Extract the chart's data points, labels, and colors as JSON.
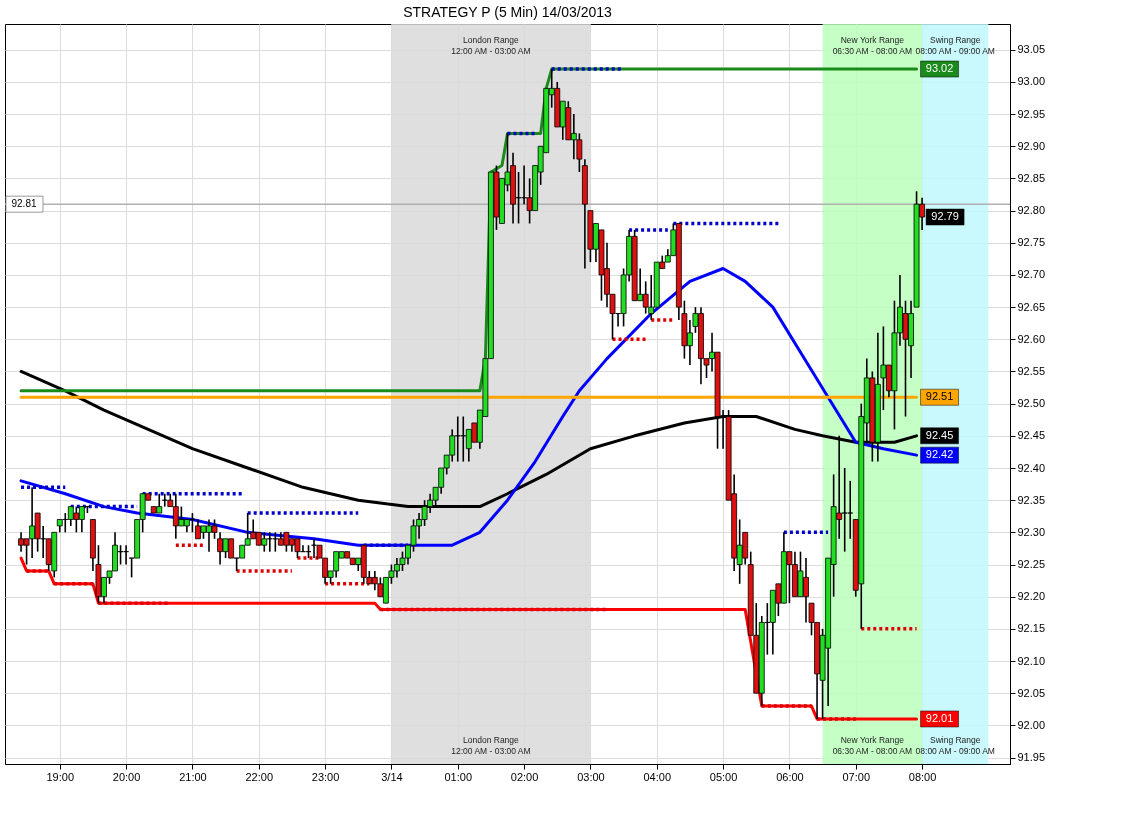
{
  "chart_data": {
    "type": "candlestick",
    "title": "STRATEGY P (5 Min)  14/03/2013",
    "x": [
      "2013-03-13T18:25",
      "2013-03-13T18:30",
      "2013-03-13T18:35",
      "2013-03-13T18:40",
      "2013-03-13T18:45",
      "2013-03-13T18:50",
      "2013-03-13T18:55",
      "2013-03-13T19:00",
      "2013-03-13T19:05",
      "2013-03-13T19:10",
      "2013-03-13T19:15",
      "2013-03-13T19:20",
      "2013-03-13T19:25",
      "2013-03-13T19:30",
      "2013-03-13T19:35",
      "2013-03-13T19:40",
      "2013-03-13T19:45",
      "2013-03-13T19:50",
      "2013-03-13T19:55",
      "2013-03-13T20:00",
      "2013-03-13T20:05",
      "2013-03-13T20:10",
      "2013-03-13T20:15",
      "2013-03-13T20:20",
      "2013-03-13T20:25",
      "2013-03-13T20:30",
      "2013-03-13T20:35",
      "2013-03-13T20:40",
      "2013-03-13T20:45",
      "2013-03-13T20:50",
      "2013-03-13T20:55",
      "2013-03-13T21:00",
      "2013-03-13T21:05",
      "2013-03-13T21:10",
      "2013-03-13T21:15",
      "2013-03-13T21:20",
      "2013-03-13T21:25",
      "2013-03-13T21:30",
      "2013-03-13T21:35",
      "2013-03-13T21:40",
      "2013-03-13T21:45",
      "2013-03-13T21:50",
      "2013-03-13T21:55",
      "2013-03-13T22:00",
      "2013-03-13T22:05",
      "2013-03-13T22:10",
      "2013-03-13T22:15",
      "2013-03-13T22:20",
      "2013-03-13T22:25",
      "2013-03-13T22:30",
      "2013-03-13T22:35",
      "2013-03-13T22:40",
      "2013-03-13T22:45",
      "2013-03-13T22:50",
      "2013-03-13T22:55",
      "2013-03-13T23:00",
      "2013-03-13T23:05",
      "2013-03-13T23:10",
      "2013-03-13T23:15",
      "2013-03-13T23:20",
      "2013-03-13T23:25",
      "2013-03-13T23:30",
      "2013-03-13T23:35",
      "2013-03-13T23:40",
      "2013-03-13T23:45",
      "2013-03-13T23:50",
      "2013-03-13T23:55",
      "2013-03-14T00:00",
      "2013-03-14T00:05",
      "2013-03-14T00:10",
      "2013-03-14T00:15",
      "2013-03-14T00:20",
      "2013-03-14T00:25",
      "2013-03-14T00:30",
      "2013-03-14T00:35",
      "2013-03-14T00:40",
      "2013-03-14T00:45",
      "2013-03-14T00:50",
      "2013-03-14T00:55",
      "2013-03-14T01:00",
      "2013-03-14T01:05",
      "2013-03-14T01:10",
      "2013-03-14T01:15",
      "2013-03-14T01:20",
      "2013-03-14T01:25",
      "2013-03-14T01:30",
      "2013-03-14T01:35",
      "2013-03-14T01:40",
      "2013-03-14T01:45",
      "2013-03-14T01:50",
      "2013-03-14T01:55",
      "2013-03-14T02:00",
      "2013-03-14T02:05",
      "2013-03-14T02:10",
      "2013-03-14T02:15",
      "2013-03-14T02:20",
      "2013-03-14T02:25",
      "2013-03-14T02:30",
      "2013-03-14T02:35",
      "2013-03-14T02:40",
      "2013-03-14T02:45",
      "2013-03-14T02:50",
      "2013-03-14T02:55",
      "2013-03-14T03:00",
      "2013-03-14T03:05",
      "2013-03-14T03:10",
      "2013-03-14T03:15",
      "2013-03-14T03:20",
      "2013-03-14T03:25",
      "2013-03-14T03:30",
      "2013-03-14T03:35",
      "2013-03-14T03:40",
      "2013-03-14T03:45",
      "2013-03-14T03:50",
      "2013-03-14T03:55",
      "2013-03-14T04:00",
      "2013-03-14T04:05",
      "2013-03-14T04:10",
      "2013-03-14T04:15",
      "2013-03-14T04:20",
      "2013-03-14T04:25",
      "2013-03-14T04:30",
      "2013-03-14T04:35",
      "2013-03-14T04:40",
      "2013-03-14T04:45",
      "2013-03-14T04:50",
      "2013-03-14T04:55",
      "2013-03-14T05:00",
      "2013-03-14T05:05",
      "2013-03-14T05:10",
      "2013-03-14T05:15",
      "2013-03-14T05:20",
      "2013-03-14T05:25",
      "2013-03-14T05:30",
      "2013-03-14T05:35",
      "2013-03-14T05:40",
      "2013-03-14T05:45",
      "2013-03-14T05:50",
      "2013-03-14T05:55",
      "2013-03-14T06:00",
      "2013-03-14T06:05",
      "2013-03-14T06:10",
      "2013-03-14T06:15",
      "2013-03-14T06:20",
      "2013-03-14T06:25",
      "2013-03-14T06:30",
      "2013-03-14T06:35",
      "2013-03-14T06:40",
      "2013-03-14T06:45",
      "2013-03-14T06:50",
      "2013-03-14T06:55",
      "2013-03-14T07:00",
      "2013-03-14T07:05",
      "2013-03-14T07:10",
      "2013-03-14T07:15",
      "2013-03-14T07:20",
      "2013-03-14T07:25",
      "2013-03-14T07:30",
      "2013-03-14T07:35",
      "2013-03-14T07:40",
      "2013-03-14T07:45",
      "2013-03-14T07:50",
      "2013-03-14T07:55",
      "2013-03-14T08:00"
    ],
    "ohlc": [
      [
        92.29,
        92.3,
        92.27,
        92.28
      ],
      [
        92.29,
        92.29,
        92.25,
        92.28
      ],
      [
        92.29,
        92.37,
        92.26,
        92.31
      ],
      [
        92.33,
        92.33,
        92.27,
        92.29
      ],
      [
        92.29,
        92.31,
        92.26,
        92.29
      ],
      [
        92.29,
        92.29,
        92.24,
        92.25
      ],
      [
        92.24,
        92.3,
        92.23,
        92.3
      ],
      [
        92.31,
        92.32,
        92.3,
        92.32
      ],
      [
        92.32,
        92.33,
        92.3,
        92.32
      ],
      [
        92.32,
        92.34,
        92.31,
        92.34
      ],
      [
        92.33,
        92.34,
        92.3,
        92.32
      ],
      [
        92.32,
        92.34,
        92.3,
        92.34
      ],
      [
        92.34,
        92.34,
        92.33,
        92.34
      ],
      [
        92.32,
        92.32,
        92.24,
        92.26
      ],
      [
        92.25,
        92.28,
        92.19,
        92.2
      ],
      [
        92.2,
        92.23,
        92.19,
        92.23
      ],
      [
        92.23,
        92.24,
        92.22,
        92.24
      ],
      [
        92.24,
        92.3,
        92.24,
        92.28
      ],
      [
        92.27,
        92.28,
        92.25,
        92.27
      ],
      [
        92.27,
        92.28,
        92.25,
        92.27
      ],
      [
        92.26,
        92.26,
        92.23,
        92.26
      ],
      [
        92.26,
        92.32,
        92.26,
        92.32
      ],
      [
        92.32,
        92.36,
        92.3,
        92.36
      ],
      [
        92.36,
        92.36,
        92.35,
        92.35
      ],
      [
        92.34,
        92.34,
        92.33,
        92.33
      ],
      [
        92.33,
        92.36,
        92.33,
        92.34
      ],
      [
        92.35,
        92.36,
        92.34,
        92.35
      ],
      [
        92.35,
        92.36,
        92.34,
        92.34
      ],
      [
        92.34,
        92.36,
        92.29,
        92.31
      ],
      [
        92.31,
        92.34,
        92.31,
        92.32
      ],
      [
        92.31,
        92.32,
        92.3,
        92.32
      ],
      [
        92.32,
        92.33,
        92.3,
        92.32
      ],
      [
        92.31,
        92.32,
        92.29,
        92.29
      ],
      [
        92.3,
        92.31,
        92.29,
        92.31
      ],
      [
        92.3,
        92.32,
        92.27,
        92.31
      ],
      [
        92.31,
        92.32,
        92.29,
        92.3
      ],
      [
        92.29,
        92.3,
        92.25,
        92.27
      ],
      [
        92.27,
        92.29,
        92.26,
        92.29
      ],
      [
        92.29,
        92.29,
        92.26,
        92.26
      ],
      [
        92.26,
        92.26,
        92.24,
        92.26
      ],
      [
        92.26,
        92.28,
        92.26,
        92.28
      ],
      [
        92.28,
        92.33,
        92.28,
        92.29
      ],
      [
        92.3,
        92.32,
        92.29,
        92.29
      ],
      [
        92.3,
        92.3,
        92.28,
        92.28
      ],
      [
        92.28,
        92.3,
        92.27,
        92.29
      ],
      [
        92.29,
        92.3,
        92.27,
        92.29
      ],
      [
        92.29,
        92.3,
        92.27,
        92.29
      ],
      [
        92.29,
        92.3,
        92.28,
        92.28
      ],
      [
        92.3,
        92.3,
        92.27,
        92.28
      ],
      [
        92.29,
        92.29,
        92.27,
        92.28
      ],
      [
        92.29,
        92.29,
        92.26,
        92.27
      ],
      [
        92.27,
        92.28,
        92.27,
        92.27
      ],
      [
        92.27,
        92.28,
        92.26,
        92.27
      ],
      [
        92.28,
        92.29,
        92.26,
        92.28
      ],
      [
        92.28,
        92.28,
        92.26,
        92.26
      ],
      [
        92.26,
        92.26,
        92.22,
        92.23
      ],
      [
        92.23,
        92.24,
        92.22,
        92.24
      ],
      [
        92.24,
        92.27,
        92.23,
        92.27
      ],
      [
        92.26,
        92.27,
        92.26,
        92.27
      ],
      [
        92.27,
        92.27,
        92.26,
        92.26
      ],
      [
        92.26,
        92.26,
        92.25,
        92.25
      ],
      [
        92.25,
        92.26,
        92.24,
        92.26
      ],
      [
        92.28,
        92.28,
        92.22,
        92.23
      ],
      [
        92.23,
        92.24,
        92.22,
        92.22
      ],
      [
        92.23,
        92.24,
        92.21,
        92.22
      ],
      [
        92.22,
        92.23,
        92.2,
        92.2
      ],
      [
        92.19,
        92.23,
        92.19,
        92.23
      ],
      [
        92.23,
        92.25,
        92.22,
        92.24
      ],
      [
        92.24,
        92.26,
        92.23,
        92.25
      ],
      [
        92.25,
        92.27,
        92.24,
        92.26
      ],
      [
        92.26,
        92.28,
        92.25,
        92.28
      ],
      [
        92.28,
        92.32,
        92.27,
        92.31
      ],
      [
        92.31,
        92.33,
        92.29,
        92.32
      ],
      [
        92.32,
        92.35,
        92.31,
        92.34
      ],
      [
        92.34,
        92.36,
        92.33,
        92.35
      ],
      [
        92.35,
        92.37,
        92.34,
        92.37
      ],
      [
        92.37,
        92.4,
        92.36,
        92.4
      ],
      [
        92.4,
        92.42,
        92.39,
        92.42
      ],
      [
        92.42,
        92.46,
        92.41,
        92.45
      ],
      [
        92.45,
        92.48,
        92.41,
        92.45
      ],
      [
        92.45,
        92.48,
        92.41,
        92.45
      ],
      [
        92.43,
        92.46,
        92.41,
        92.46
      ],
      [
        92.47,
        92.47,
        92.44,
        92.44
      ],
      [
        92.44,
        92.49,
        92.43,
        92.49
      ],
      [
        92.48,
        92.57,
        92.48,
        92.57
      ],
      [
        92.57,
        92.86,
        92.57,
        92.86
      ],
      [
        92.86,
        92.87,
        92.77,
        92.79
      ],
      [
        92.78,
        92.85,
        92.78,
        92.85
      ],
      [
        92.84,
        92.92,
        92.83,
        92.86
      ],
      [
        92.87,
        92.89,
        92.78,
        92.81
      ],
      [
        92.82,
        92.86,
        92.78,
        92.82
      ],
      [
        92.82,
        92.87,
        92.81,
        92.82
      ],
      [
        92.82,
        92.85,
        92.78,
        92.8
      ],
      [
        92.8,
        92.87,
        92.8,
        92.87
      ],
      [
        92.86,
        92.9,
        92.84,
        92.9
      ],
      [
        92.89,
        92.99,
        92.89,
        92.99
      ],
      [
        92.98,
        93.02,
        92.96,
        92.99
      ],
      [
        92.99,
        93.0,
        92.93,
        92.93
      ],
      [
        92.93,
        92.97,
        92.91,
        92.97
      ],
      [
        92.96,
        92.97,
        92.91,
        92.91
      ],
      [
        92.91,
        92.95,
        92.88,
        92.92
      ],
      [
        92.91,
        92.92,
        92.86,
        92.88
      ],
      [
        92.87,
        92.88,
        92.71,
        92.81
      ],
      [
        92.8,
        92.8,
        92.72,
        92.74
      ],
      [
        92.74,
        92.78,
        92.72,
        92.78
      ],
      [
        92.77,
        92.77,
        92.66,
        92.7
      ],
      [
        92.71,
        92.75,
        92.65,
        92.67
      ],
      [
        92.67,
        92.67,
        92.6,
        92.64
      ],
      [
        92.64,
        92.64,
        92.62,
        92.64
      ],
      [
        92.64,
        92.71,
        92.62,
        92.7
      ],
      [
        92.7,
        92.77,
        92.69,
        92.76
      ],
      [
        92.76,
        92.77,
        92.66,
        92.66
      ],
      [
        92.66,
        92.71,
        92.66,
        92.67
      ],
      [
        92.67,
        92.69,
        92.64,
        92.65
      ],
      [
        92.64,
        92.7,
        92.63,
        92.65
      ],
      [
        92.65,
        92.72,
        92.65,
        92.72
      ],
      [
        92.72,
        92.73,
        92.71,
        92.71
      ],
      [
        92.72,
        92.74,
        92.72,
        92.73
      ],
      [
        92.73,
        92.78,
        92.73,
        92.77
      ],
      [
        92.78,
        92.78,
        92.63,
        92.65
      ],
      [
        92.64,
        92.66,
        92.57,
        92.59
      ],
      [
        92.59,
        92.63,
        92.56,
        92.61
      ],
      [
        92.62,
        92.65,
        92.61,
        92.64
      ],
      [
        92.64,
        92.65,
        92.53,
        92.57
      ],
      [
        92.57,
        92.57,
        92.54,
        92.56
      ],
      [
        92.57,
        92.61,
        92.55,
        92.58
      ],
      [
        92.58,
        92.58,
        92.43,
        92.48
      ],
      [
        92.48,
        92.49,
        92.43,
        92.48
      ],
      [
        92.48,
        92.49,
        92.35,
        92.35
      ],
      [
        92.36,
        92.39,
        92.24,
        92.26
      ],
      [
        92.25,
        92.32,
        92.22,
        92.28
      ],
      [
        92.3,
        92.3,
        92.25,
        92.26
      ],
      [
        92.25,
        92.27,
        92.14,
        92.14
      ],
      [
        92.14,
        92.19,
        92.05,
        92.05
      ],
      [
        92.05,
        92.17,
        92.03,
        92.16
      ],
      [
        92.16,
        92.19,
        92.11,
        92.16
      ],
      [
        92.16,
        92.21,
        92.11,
        92.21
      ],
      [
        92.22,
        92.22,
        92.17,
        92.19
      ],
      [
        92.19,
        92.3,
        92.19,
        92.27
      ],
      [
        92.27,
        92.27,
        92.19,
        92.25
      ],
      [
        92.25,
        92.27,
        92.2,
        92.2
      ],
      [
        92.2,
        92.27,
        92.2,
        92.24
      ],
      [
        92.23,
        92.26,
        92.16,
        92.2
      ],
      [
        92.19,
        92.19,
        92.14,
        92.16
      ],
      [
        92.16,
        92.16,
        92.01,
        92.08
      ],
      [
        92.07,
        92.15,
        92.01,
        92.14
      ],
      [
        92.12,
        92.26,
        92.03,
        92.26
      ],
      [
        92.25,
        92.39,
        92.2,
        92.34
      ],
      [
        92.33,
        92.45,
        92.29,
        92.32
      ],
      [
        92.33,
        92.4,
        92.27,
        92.33
      ],
      [
        92.33,
        92.38,
        92.29,
        92.33
      ],
      [
        92.32,
        92.32,
        92.2,
        92.21
      ],
      [
        92.22,
        92.5,
        92.15,
        92.48
      ],
      [
        92.47,
        92.57,
        92.44,
        92.54
      ],
      [
        92.54,
        92.55,
        92.41,
        92.44
      ],
      [
        92.44,
        92.61,
        92.41,
        92.53
      ],
      [
        92.54,
        92.62,
        92.49,
        92.56
      ],
      [
        92.56,
        92.56,
        92.51,
        92.52
      ],
      [
        92.52,
        92.66,
        92.46,
        92.61
      ],
      [
        92.61,
        92.7,
        92.59,
        92.65
      ],
      [
        92.64,
        92.66,
        92.48,
        92.6
      ],
      [
        92.59,
        92.66,
        92.54,
        92.64
      ],
      [
        92.65,
        92.83,
        92.65,
        92.81
      ],
      [
        92.81,
        92.82,
        92.77,
        92.79
      ]
    ],
    "series": [
      {
        "type": "line",
        "color": "#000000",
        "x": [
          "2013-03-13T18:25",
          "2013-03-13T19:05",
          "2013-03-13T19:40",
          "2013-03-13T20:20",
          "2013-03-13T21:00",
          "2013-03-13T21:50",
          "2013-03-13T22:40",
          "2013-03-13T23:30",
          "2013-03-14T00:15",
          "2013-03-14T01:20",
          "2013-03-14T01:45",
          "2013-03-14T02:20",
          "2013-03-14T03:00",
          "2013-03-14T03:40",
          "2013-03-14T04:25",
          "2013-03-14T05:00",
          "2013-03-14T05:30",
          "2013-03-14T06:05",
          "2013-03-14T06:30",
          "2013-03-14T07:00",
          "2013-03-14T07:35",
          "2013-03-14T07:55"
        ],
        "values": [
          92.55,
          92.52,
          92.49,
          92.46,
          92.43,
          92.4,
          92.37,
          92.35,
          92.34,
          92.34,
          92.36,
          92.39,
          92.43,
          92.45,
          92.47,
          92.48,
          92.48,
          92.46,
          92.45,
          92.44,
          92.44,
          92.45
        ]
      },
      {
        "type": "line",
        "color": "#0000ff",
        "x": [
          "2013-03-13T18:25",
          "2013-03-13T19:05",
          "2013-03-13T19:40",
          "2013-03-13T20:10",
          "2013-03-13T21:00",
          "2013-03-13T21:50",
          "2013-03-13T22:50",
          "2013-03-13T23:30",
          "2013-03-14T00:30",
          "2013-03-14T00:55",
          "2013-03-14T01:20",
          "2013-03-14T01:45",
          "2013-03-14T02:10",
          "2013-03-14T02:35",
          "2013-03-14T02:50",
          "2013-03-14T03:15",
          "2013-03-14T03:55",
          "2013-03-14T04:30",
          "2013-03-14T05:00",
          "2013-03-14T05:20",
          "2013-03-14T05:45",
          "2013-03-14T06:10",
          "2013-03-14T06:35",
          "2013-03-14T07:00",
          "2013-03-14T07:25",
          "2013-03-14T07:55"
        ],
        "values": [
          92.38,
          92.36,
          92.34,
          92.33,
          92.32,
          92.3,
          92.29,
          92.28,
          92.28,
          92.28,
          92.3,
          92.35,
          92.41,
          92.48,
          92.52,
          92.57,
          92.64,
          92.69,
          92.71,
          92.69,
          92.65,
          92.58,
          92.51,
          92.44,
          92.43,
          92.42
        ]
      },
      {
        "type": "line",
        "color": "#1a8a1a",
        "x": [
          "2013-03-13T18:25",
          "2013-03-14T01:20",
          "2013-03-14T01:25",
          "2013-03-14T01:30",
          "2013-03-14T01:40",
          "2013-03-14T01:45",
          "2013-03-14T02:15",
          "2013-03-14T02:20",
          "2013-03-14T02:25",
          "2013-03-14T07:55"
        ],
        "values": [
          92.52,
          92.52,
          92.57,
          92.86,
          92.87,
          92.92,
          92.92,
          92.99,
          93.02,
          93.02
        ]
      },
      {
        "type": "line",
        "color": "#ff0000",
        "x": [
          "2013-03-13T18:25",
          "2013-03-13T18:30",
          "2013-03-13T18:50",
          "2013-03-13T18:55",
          "2013-03-13T19:30",
          "2013-03-13T19:35",
          "2013-03-13T23:45",
          "2013-03-13T23:50",
          "2013-03-14T05:20",
          "2013-03-14T05:35",
          "2013-03-14T06:20",
          "2013-03-14T06:25",
          "2013-03-14T07:55"
        ],
        "values": [
          92.26,
          92.24,
          92.24,
          92.22,
          92.22,
          92.19,
          92.19,
          92.18,
          92.18,
          92.03,
          92.03,
          92.01,
          92.01
        ]
      },
      {
        "type": "line",
        "color": "#ffa500",
        "x": [
          "2013-03-13T18:25",
          "2013-03-14T07:55"
        ],
        "values": [
          92.51,
          92.51
        ]
      },
      {
        "type": "line",
        "color": "#0000c8",
        "line_style": "dotted",
        "x": [
          "2013-03-13T18:25",
          "2013-03-13T19:05"
        ],
        "values": [
          92.37,
          92.37
        ]
      },
      {
        "type": "line",
        "color": "#0000c8",
        "line_style": "dotted",
        "x": [
          "2013-03-13T19:10",
          "2013-03-13T20:10"
        ],
        "values": [
          92.34,
          92.34
        ]
      },
      {
        "type": "line",
        "color": "#0000c8",
        "line_style": "dotted",
        "x": [
          "2013-03-13T20:15",
          "2013-03-13T21:45"
        ],
        "values": [
          92.36,
          92.36
        ]
      },
      {
        "type": "line",
        "color": "#0000c8",
        "line_style": "dotted",
        "x": [
          "2013-03-13T21:50",
          "2013-03-13T23:30"
        ],
        "values": [
          92.33,
          92.33
        ]
      },
      {
        "type": "line",
        "color": "#0000c8",
        "line_style": "dotted",
        "x": [
          "2013-03-13T23:35",
          "2013-03-14T00:15"
        ],
        "values": [
          92.28,
          92.28
        ]
      },
      {
        "type": "line",
        "color": "#0000c8",
        "line_style": "dotted",
        "x": [
          "2013-03-14T01:45",
          "2013-03-14T02:10"
        ],
        "values": [
          92.92,
          92.92
        ]
      },
      {
        "type": "line",
        "color": "#0000c8",
        "line_style": "dotted",
        "x": [
          "2013-03-14T02:25",
          "2013-03-14T03:30"
        ],
        "values": [
          93.02,
          93.02
        ]
      },
      {
        "type": "line",
        "color": "#0000c8",
        "line_style": "dotted",
        "x": [
          "2013-03-14T03:35",
          "2013-03-14T04:10"
        ],
        "values": [
          92.77,
          92.77
        ]
      },
      {
        "type": "line",
        "color": "#0000c8",
        "line_style": "dotted",
        "x": [
          "2013-03-14T04:15",
          "2013-03-14T05:50"
        ],
        "values": [
          92.78,
          92.78
        ]
      },
      {
        "type": "line",
        "color": "#0000c8",
        "line_style": "dotted",
        "x": [
          "2013-03-14T05:55",
          "2013-03-14T06:35"
        ],
        "values": [
          92.3,
          92.3
        ]
      },
      {
        "type": "line",
        "color": "#dd0000",
        "line_style": "dotted",
        "x": [
          "2013-03-13T18:30",
          "2013-03-13T18:50"
        ],
        "values": [
          92.24,
          92.24
        ]
      },
      {
        "type": "line",
        "color": "#dd0000",
        "line_style": "dotted",
        "x": [
          "2013-03-13T18:55",
          "2013-03-13T19:30"
        ],
        "values": [
          92.22,
          92.22
        ]
      },
      {
        "type": "line",
        "color": "#dd0000",
        "line_style": "dotted",
        "x": [
          "2013-03-13T19:35",
          "2013-03-13T20:40"
        ],
        "values": [
          92.19,
          92.19
        ]
      },
      {
        "type": "line",
        "color": "#dd0000",
        "line_style": "dotted",
        "x": [
          "2013-03-13T20:45",
          "2013-03-13T21:10"
        ],
        "values": [
          92.28,
          92.28
        ]
      },
      {
        "type": "line",
        "color": "#dd0000",
        "line_style": "dotted",
        "x": [
          "2013-03-13T21:40",
          "2013-03-13T22:30"
        ],
        "values": [
          92.24,
          92.24
        ]
      },
      {
        "type": "line",
        "color": "#dd0000",
        "line_style": "dotted",
        "x": [
          "2013-03-13T22:35",
          "2013-03-13T22:55"
        ],
        "values": [
          92.26,
          92.26
        ]
      },
      {
        "type": "line",
        "color": "#dd0000",
        "line_style": "dotted",
        "x": [
          "2013-03-13T23:00",
          "2013-03-13T23:40"
        ],
        "values": [
          92.22,
          92.22
        ]
      },
      {
        "type": "line",
        "color": "#dd0000",
        "line_style": "dotted",
        "x": [
          "2013-03-13T23:50",
          "2013-03-14T03:15"
        ],
        "values": [
          92.18,
          92.18
        ]
      },
      {
        "type": "line",
        "color": "#dd0000",
        "line_style": "dotted",
        "x": [
          "2013-03-14T03:20",
          "2013-03-14T03:50"
        ],
        "values": [
          92.6,
          92.6
        ]
      },
      {
        "type": "line",
        "color": "#dd0000",
        "line_style": "dotted",
        "x": [
          "2013-03-14T03:55",
          "2013-03-14T04:15"
        ],
        "values": [
          92.63,
          92.63
        ]
      },
      {
        "type": "line",
        "color": "#dd0000",
        "line_style": "dotted",
        "x": [
          "2013-03-14T05:35",
          "2013-03-14T06:20"
        ],
        "values": [
          92.03,
          92.03
        ]
      },
      {
        "type": "line",
        "color": "#dd0000",
        "line_style": "dotted",
        "x": [
          "2013-03-14T06:25",
          "2013-03-14T07:00"
        ],
        "values": [
          92.01,
          92.01
        ]
      },
      {
        "type": "line",
        "color": "#dd0000",
        "line_style": "dotted",
        "x": [
          "2013-03-14T07:05",
          "2013-03-14T07:55"
        ],
        "values": [
          92.15,
          92.15
        ]
      }
    ],
    "bands": [
      {
        "axis": "x",
        "from": "2013-03-14T00:00",
        "to": "2013-03-14T03:00",
        "label": "London Range\n12:00 AM - 03:00 AM",
        "color": "#d9d9d9"
      },
      {
        "axis": "x",
        "from": "2013-03-14T06:30",
        "to": "2013-03-14T08:00",
        "label": "New York Range\n06:30 AM - 08:00 AM",
        "color": "#bbffbb"
      },
      {
        "axis": "x",
        "from": "2013-03-14T08:00",
        "to": "2013-03-14T09:00",
        "label": "Swing Range\n08:00 AM - 09:00 AM",
        "color": "#bff8fb"
      }
    ],
    "ref_lines": [
      {
        "axis": "y",
        "value": 92.81,
        "label": "92.81",
        "color": "#b0b0b0"
      }
    ],
    "annotations": [
      {
        "text": "93.02",
        "x": "2013-03-14T07:55",
        "y": 93.02
      },
      {
        "text": "92.79",
        "x": "2013-03-14T08:00",
        "y": 92.79
      },
      {
        "text": "92.51",
        "x": "2013-03-14T07:55",
        "y": 92.51
      },
      {
        "text": "92.45",
        "x": "2013-03-14T07:55",
        "y": 92.45
      },
      {
        "text": "92.42",
        "x": "2013-03-14T07:55",
        "y": 92.42
      },
      {
        "text": "92.01",
        "x": "2013-03-14T07:55",
        "y": 92.01
      }
    ],
    "xlim": [
      "2013-03-13T18:15",
      "2013-03-14T09:15"
    ],
    "xticks": [
      {
        "value": "2013-03-13T19:00",
        "label": "19:00"
      },
      {
        "value": "2013-03-13T20:00",
        "label": "20:00"
      },
      {
        "value": "2013-03-13T21:00",
        "label": "21:00"
      },
      {
        "value": "2013-03-13T22:00",
        "label": "22:00"
      },
      {
        "value": "2013-03-13T23:00",
        "label": "23:00"
      },
      {
        "value": "2013-03-14T00:00",
        "label": "3/14"
      },
      {
        "value": "2013-03-14T01:00",
        "label": "01:00"
      },
      {
        "value": "2013-03-14T02:00",
        "label": "02:00"
      },
      {
        "value": "2013-03-14T03:00",
        "label": "03:00"
      },
      {
        "value": "2013-03-14T04:00",
        "label": "04:00"
      },
      {
        "value": "2013-03-14T05:00",
        "label": "05:00"
      },
      {
        "value": "2013-03-14T06:00",
        "label": "06:00"
      },
      {
        "value": "2013-03-14T07:00",
        "label": "07:00"
      },
      {
        "value": "2013-03-14T08:00",
        "label": "08:00"
      }
    ],
    "ylim": [
      91.94,
      93.09
    ],
    "yticks": [
      91.95,
      {
        "value": 92,
        "label": "92.00"
      },
      92.05,
      {
        "value": 92.1,
        "label": "92.10"
      },
      92.15,
      {
        "value": 92.2,
        "label": "92.20"
      },
      92.25,
      {
        "value": 92.3,
        "label": "92.30"
      },
      92.35,
      {
        "value": 92.4,
        "label": "92.40"
      },
      92.45,
      {
        "value": 92.5,
        "label": "92.50"
      },
      92.55,
      {
        "value": 92.6,
        "label": "92.60"
      },
      92.65,
      {
        "value": 92.7,
        "label": "92.70"
      },
      92.75,
      {
        "value": 92.8,
        "label": "92.80"
      },
      92.85,
      {
        "value": 92.9,
        "label": "92.90"
      },
      92.95,
      {
        "value": 93,
        "label": "93.00"
      },
      93.05
    ],
    "grid": true
  }
}
